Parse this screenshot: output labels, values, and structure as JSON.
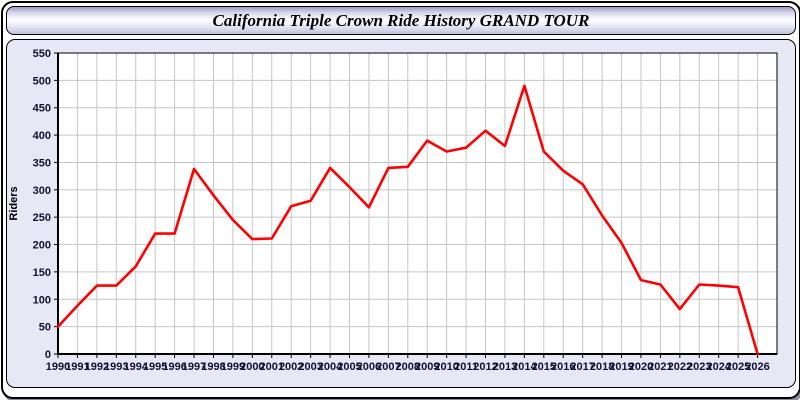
{
  "window": {
    "title": "California Triple Crown Ride History GRAND TOUR"
  },
  "chart_data": {
    "type": "line",
    "title": "California Triple Crown Ride History GRAND TOUR",
    "xlabel": "",
    "ylabel": "Riders",
    "x": [
      1990,
      1991,
      1992,
      1993,
      1994,
      1995,
      1996,
      1997,
      1998,
      1999,
      2000,
      2001,
      2002,
      2003,
      2004,
      2005,
      2006,
      2007,
      2008,
      2009,
      2010,
      2011,
      2012,
      2013,
      2014,
      2015,
      2016,
      2017,
      2018,
      2019,
      2020,
      2021,
      2022,
      2023,
      2024,
      2025,
      2026
    ],
    "series": [
      {
        "name": "Riders",
        "color": "#ff0000",
        "values": [
          50,
          88,
          125,
          125,
          160,
          220,
          220,
          338,
          290,
          245,
          210,
          211,
          270,
          280,
          340,
          305,
          268,
          340,
          342,
          390,
          370,
          377,
          408,
          380,
          490,
          370,
          335,
          310,
          253,
          203,
          135,
          127,
          82,
          127,
          125,
          122,
          0
        ]
      }
    ],
    "ylim": [
      0,
      550
    ],
    "ytick_step": 50,
    "xlim": [
      1990,
      2027
    ],
    "grid": true,
    "legend_position": "none",
    "colors": {
      "line": "#ff0000",
      "plot_background": "#ffffff",
      "panel_background": "#e7e7f5",
      "gridline": "#c6c6c6",
      "axis": "#000000",
      "tick_label": "#101030",
      "title_text": "#000000"
    }
  }
}
